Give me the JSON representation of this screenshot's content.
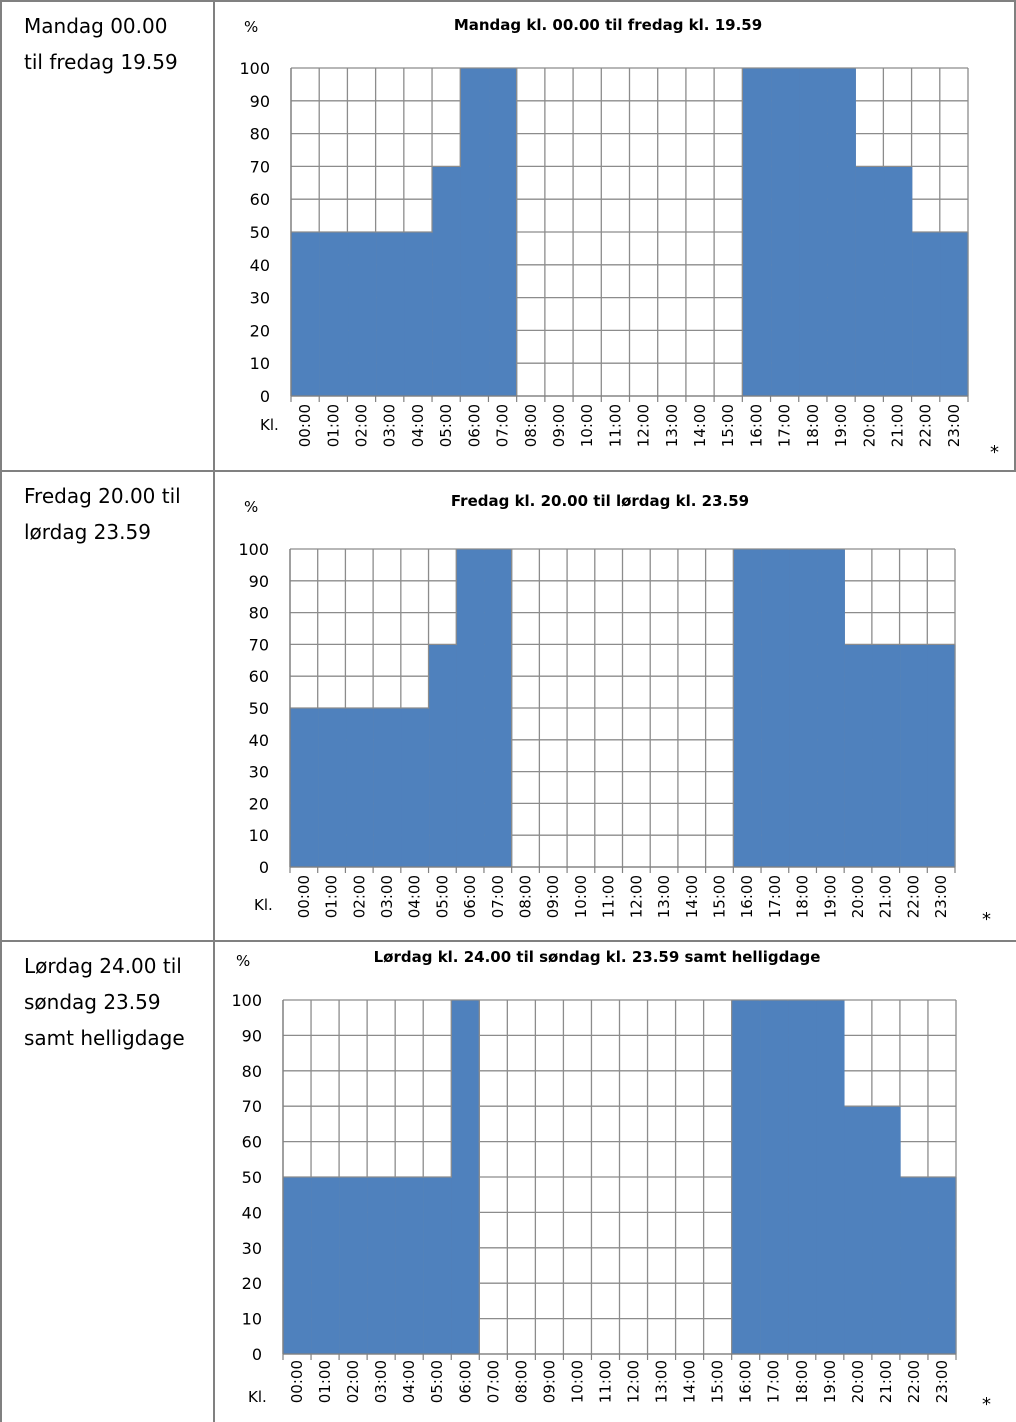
{
  "rows": [
    {
      "label": "Mandag 00.00\ntil fredag 19.59"
    },
    {
      "label": "Fredag 20.00 til\nlørdag 23.59"
    },
    {
      "label": "Lørdag 24.00 til\nsøndag 23.59\nsamt helligdage"
    }
  ],
  "chart_data": [
    {
      "type": "area",
      "title": "Mandag kl. 00.00 til fredag kl. 19.59",
      "ylabel": "%",
      "xlabel": "Kl.",
      "footnote": "*",
      "categories": [
        "00:00",
        "01:00",
        "02:00",
        "03:00",
        "04:00",
        "05:00",
        "06:00",
        "07:00",
        "08:00",
        "09:00",
        "10:00",
        "11:00",
        "12:00",
        "13:00",
        "14:00",
        "15:00",
        "16:00",
        "17:00",
        "18:00",
        "19:00",
        "20:00",
        "21:00",
        "22:00",
        "23:00"
      ],
      "values": [
        50,
        50,
        50,
        50,
        50,
        70,
        100,
        100,
        0,
        0,
        0,
        0,
        0,
        0,
        0,
        0,
        100,
        100,
        100,
        100,
        70,
        70,
        50,
        50
      ],
      "yticks": [
        0,
        10,
        20,
        30,
        40,
        50,
        60,
        70,
        80,
        90,
        100
      ],
      "ylim": [
        0,
        100
      ],
      "grid": true,
      "color": "#4f81bd"
    },
    {
      "type": "area",
      "title": "Fredag kl. 20.00 til lørdag kl. 23.59",
      "ylabel": "%",
      "xlabel": "Kl.",
      "footnote": "*",
      "categories": [
        "00:00",
        "01:00",
        "02:00",
        "03:00",
        "04:00",
        "05:00",
        "06:00",
        "07:00",
        "08:00",
        "09:00",
        "10:00",
        "11:00",
        "12:00",
        "13:00",
        "14:00",
        "15:00",
        "16:00",
        "17:00",
        "18:00",
        "19:00",
        "20:00",
        "21:00",
        "22:00",
        "23:00"
      ],
      "values": [
        50,
        50,
        50,
        50,
        50,
        70,
        100,
        100,
        0,
        0,
        0,
        0,
        0,
        0,
        0,
        0,
        100,
        100,
        100,
        100,
        70,
        70,
        70,
        70
      ],
      "yticks": [
        0,
        10,
        20,
        30,
        40,
        50,
        60,
        70,
        80,
        90,
        100
      ],
      "ylim": [
        0,
        100
      ],
      "grid": true,
      "color": "#4f81bd"
    },
    {
      "type": "area",
      "title": "Lørdag kl. 24.00 til søndag kl. 23.59 samt helligdage",
      "ylabel": "%",
      "xlabel": "Kl.",
      "footnote": "*",
      "categories": [
        "00:00",
        "01:00",
        "02:00",
        "03:00",
        "04:00",
        "05:00",
        "06:00",
        "07:00",
        "08:00",
        "09:00",
        "10:00",
        "11:00",
        "12:00",
        "13:00",
        "14:00",
        "15:00",
        "16:00",
        "17:00",
        "18:00",
        "19:00",
        "20:00",
        "21:00",
        "22:00",
        "23:00"
      ],
      "values": [
        50,
        50,
        50,
        50,
        50,
        50,
        100,
        0,
        0,
        0,
        0,
        0,
        0,
        0,
        0,
        0,
        100,
        100,
        100,
        100,
        70,
        70,
        50,
        50
      ],
      "yticks": [
        0,
        10,
        20,
        30,
        40,
        50,
        60,
        70,
        80,
        90,
        100
      ],
      "ylim": [
        0,
        100
      ],
      "grid": true,
      "color": "#4f81bd"
    }
  ]
}
